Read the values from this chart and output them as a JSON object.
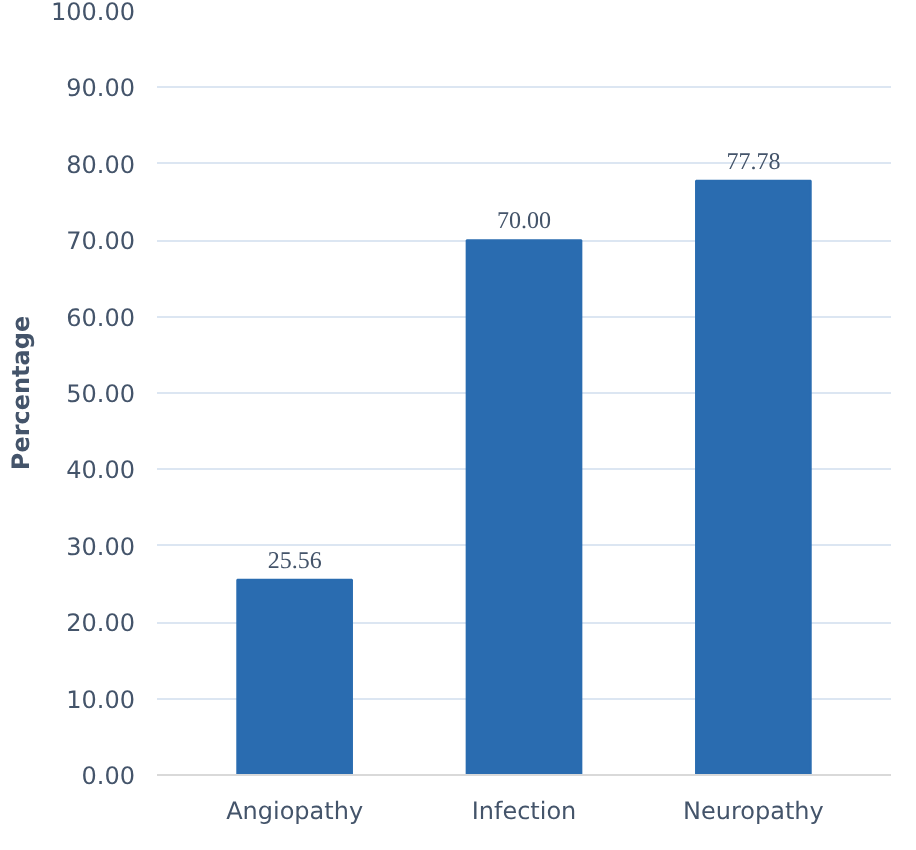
{
  "chart_data": {
    "type": "bar",
    "ylabel": "Percentage",
    "categories": [
      "Angiopathy",
      "Infection",
      "Neuropathy"
    ],
    "values": [
      25.56,
      70.0,
      77.78
    ],
    "color": "#2a6cb0",
    "value_labels": [
      "25.56",
      "70.00",
      "77.78"
    ],
    "ylim": [
      0,
      100
    ],
    "yticks": [
      {
        "value": 0,
        "label": "0.00"
      },
      {
        "value": 10,
        "label": "10.00"
      },
      {
        "value": 20,
        "label": "20.00"
      },
      {
        "value": 30,
        "label": "30.00"
      },
      {
        "value": 40,
        "label": "40.00"
      },
      {
        "value": 50,
        "label": "50.00"
      },
      {
        "value": 60,
        "label": "60.00"
      },
      {
        "value": 70,
        "label": "70.00"
      },
      {
        "value": 80,
        "label": "80.00"
      },
      {
        "value": 90,
        "label": "90.00"
      },
      {
        "value": 100,
        "label": "100.00"
      }
    ],
    "grid": "y"
  }
}
